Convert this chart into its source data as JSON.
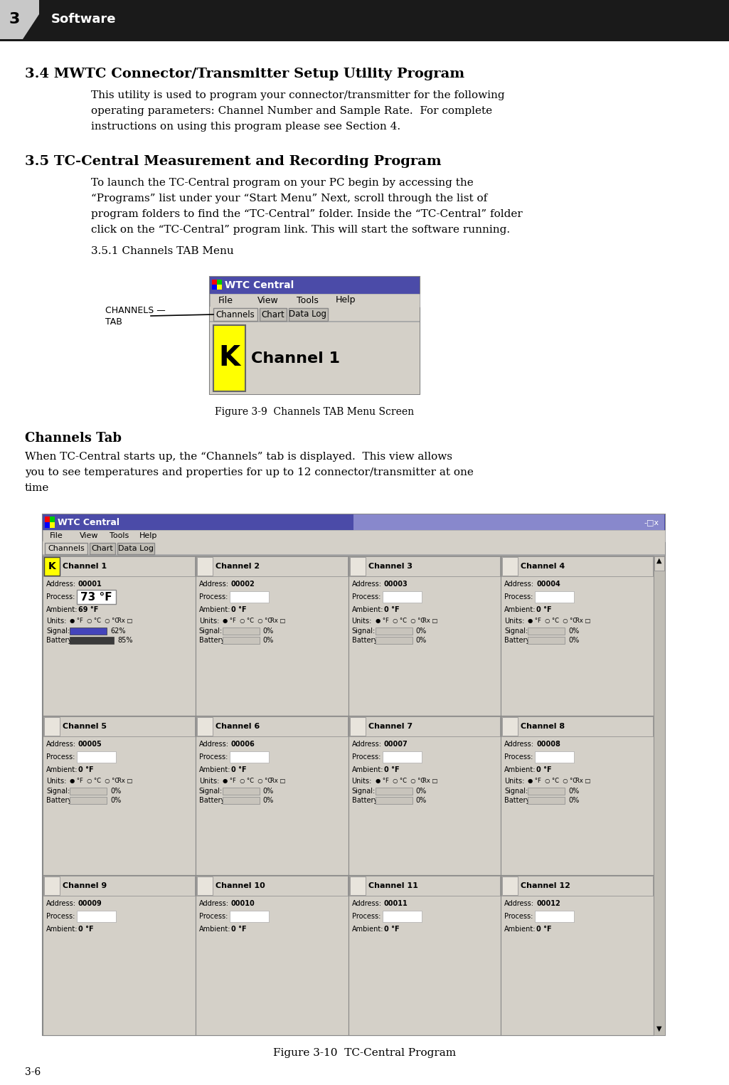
{
  "page_bg": "#ffffff",
  "header_bg": "#1a1a1a",
  "header_text": "Software",
  "section_34_title": "3.4 MWTC Connector/Transmitter Setup Utility Program",
  "section_34_body_lines": [
    "This utility is used to program your connector/transmitter for the following",
    "operating parameters: Channel Number and Sample Rate.  For complete",
    "instructions on using this program please see Section 4."
  ],
  "section_35_title": "3.5 TC-Central Measurement and Recording Program",
  "section_35_body_lines": [
    "To launch the TC-Central program on your PC begin by accessing the",
    "“Programs” list under your “Start Menu” Next, scroll through the list of",
    "program folders to find the “TC-Central” folder. Inside the “TC-Central” folder",
    "click on the “TC-Central” program link. This will start the software running."
  ],
  "section_351": "3.5.1 Channels TAB Menu",
  "fig39_caption": "Figure 3-9  Channels TAB Menu Screen",
  "channels_tab_heading": "Channels Tab",
  "channels_tab_body_lines": [
    "When TC-Central starts up, the “Channels” tab is displayed.  This view allows",
    "you to see temperatures and properties for up to 12 connector/transmitter at one",
    "time"
  ],
  "fig310_caption": "Figure 3-10  TC-Central Program",
  "footer_text": "3-6",
  "win_titlebar_color": "#4b4ba8",
  "win_bg": "#d4d0c8",
  "win_border": "#808080",
  "k_yellow": "#ffff00",
  "addresses": [
    "00001",
    "00002",
    "00003",
    "00004",
    "00005",
    "00006",
    "00007",
    "00008",
    "00009",
    "00010",
    "00011",
    "00012"
  ],
  "channels": [
    "Channel 1",
    "Channel 2",
    "Channel 3",
    "Channel 4",
    "Channel 5",
    "Channel 6",
    "Channel 7",
    "Channel 8",
    "Channel 9",
    "Channel 10",
    "Channel 11",
    "Channel 12"
  ]
}
